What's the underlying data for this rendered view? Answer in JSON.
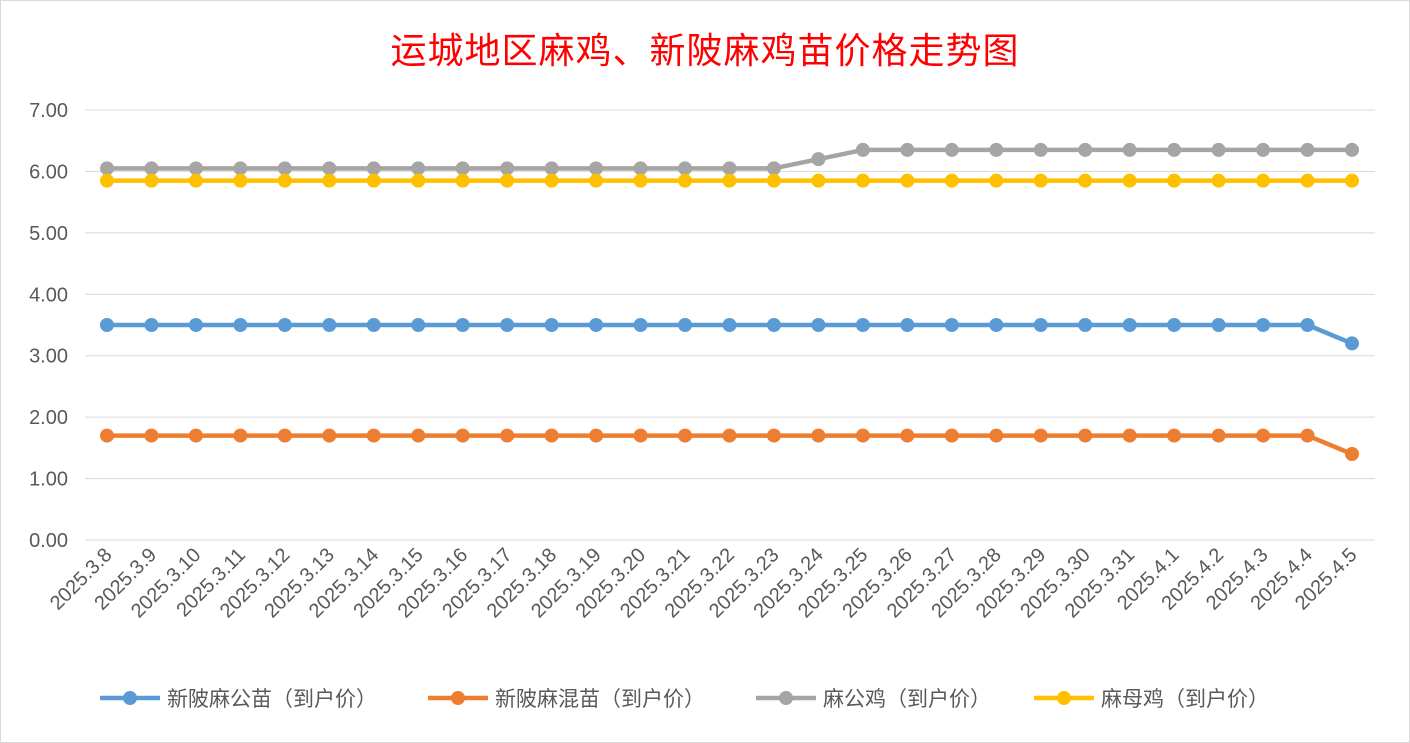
{
  "chart_data": {
    "type": "line",
    "title": "运城地区麻鸡、新陂麻鸡苗价格走势图",
    "xlabel": "",
    "ylabel": "",
    "ylim": [
      0,
      7
    ],
    "yticks": [
      "0.00",
      "1.00",
      "2.00",
      "3.00",
      "4.00",
      "5.00",
      "6.00",
      "7.00"
    ],
    "grid": true,
    "legend_position": "bottom",
    "categories": [
      "2025.3.8",
      "2025.3.9",
      "2025.3.10",
      "2025.3.11",
      "2025.3.12",
      "2025.3.13",
      "2025.3.14",
      "2025.3.15",
      "2025.3.16",
      "2025.3.17",
      "2025.3.18",
      "2025.3.19",
      "2025.3.20",
      "2025.3.21",
      "2025.3.22",
      "2025.3.23",
      "2025.3.24",
      "2025.3.25",
      "2025.3.26",
      "2025.3.27",
      "2025.3.28",
      "2025.3.29",
      "2025.3.30",
      "2025.3.31",
      "2025.4.1",
      "2025.4.2",
      "2025.4.3",
      "2025.4.4",
      "2025.4.5"
    ],
    "series": [
      {
        "name": "新陂麻公苗（到户价）",
        "color": "#5b9bd5",
        "values": [
          3.5,
          3.5,
          3.5,
          3.5,
          3.5,
          3.5,
          3.5,
          3.5,
          3.5,
          3.5,
          3.5,
          3.5,
          3.5,
          3.5,
          3.5,
          3.5,
          3.5,
          3.5,
          3.5,
          3.5,
          3.5,
          3.5,
          3.5,
          3.5,
          3.5,
          3.5,
          3.5,
          3.5,
          3.2
        ]
      },
      {
        "name": "新陂麻混苗（到户价）",
        "color": "#ed7d31",
        "values": [
          1.7,
          1.7,
          1.7,
          1.7,
          1.7,
          1.7,
          1.7,
          1.7,
          1.7,
          1.7,
          1.7,
          1.7,
          1.7,
          1.7,
          1.7,
          1.7,
          1.7,
          1.7,
          1.7,
          1.7,
          1.7,
          1.7,
          1.7,
          1.7,
          1.7,
          1.7,
          1.7,
          1.7,
          1.4
        ]
      },
      {
        "name": "麻公鸡（到户价）",
        "color": "#a5a5a5",
        "values": [
          6.05,
          6.05,
          6.05,
          6.05,
          6.05,
          6.05,
          6.05,
          6.05,
          6.05,
          6.05,
          6.05,
          6.05,
          6.05,
          6.05,
          6.05,
          6.05,
          6.2,
          6.35,
          6.35,
          6.35,
          6.35,
          6.35,
          6.35,
          6.35,
          6.35,
          6.35,
          6.35,
          6.35,
          6.35
        ]
      },
      {
        "name": "麻母鸡（到户价）",
        "color": "#ffc000",
        "values": [
          5.85,
          5.85,
          5.85,
          5.85,
          5.85,
          5.85,
          5.85,
          5.85,
          5.85,
          5.85,
          5.85,
          5.85,
          5.85,
          5.85,
          5.85,
          5.85,
          5.85,
          5.85,
          5.85,
          5.85,
          5.85,
          5.85,
          5.85,
          5.85,
          5.85,
          5.85,
          5.85,
          5.85,
          5.85
        ]
      }
    ]
  }
}
